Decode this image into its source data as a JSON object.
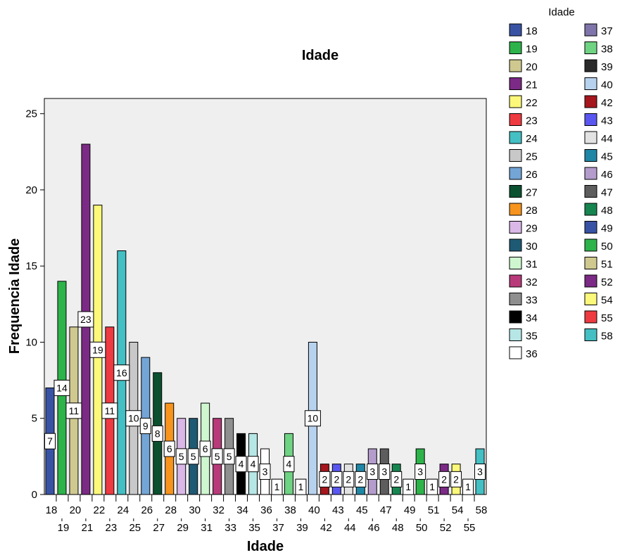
{
  "chart_data": {
    "type": "bar",
    "title": "Idade",
    "xlabel": "Idade",
    "ylabel": "Frequencia Idade",
    "ylim": [
      0,
      26
    ],
    "yticks": [
      0,
      5,
      10,
      15,
      20,
      25
    ],
    "grid": false,
    "legend_title": "Idade",
    "legend_position": "right",
    "categories": [
      "18",
      "19",
      "20",
      "21",
      "22",
      "23",
      "24",
      "25",
      "26",
      "27",
      "28",
      "29",
      "30",
      "31",
      "32",
      "33",
      "34",
      "35",
      "36",
      "37",
      "38",
      "39",
      "40",
      "42",
      "43",
      "44",
      "45",
      "46",
      "47",
      "48",
      "49",
      "50",
      "51",
      "52",
      "54",
      "55",
      "58"
    ],
    "values": [
      7,
      14,
      11,
      23,
      19,
      11,
      16,
      10,
      9,
      8,
      6,
      5,
      5,
      6,
      5,
      5,
      4,
      4,
      3,
      1,
      4,
      1,
      10,
      2,
      2,
      2,
      2,
      3,
      3,
      2,
      1,
      3,
      1,
      2,
      2,
      1,
      3
    ],
    "colors": [
      "#3953a4",
      "#2db34a",
      "#cfc98f",
      "#7b2a85",
      "#fbf87a",
      "#ee3a41",
      "#44bfc3",
      "#c8c8c8",
      "#73a5d6",
      "#0b5130",
      "#f7941d",
      "#d9b7e7",
      "#1f5a74",
      "#cef7cf",
      "#b83a7a",
      "#8f8f8f",
      "#000000",
      "#b6e6e6",
      "#ffffff",
      "#7f75aa",
      "#6ed382",
      "#2a2a2a",
      "#b7d2ef",
      "#a6161d",
      "#5a57f0",
      "#e2e2e2",
      "#1f86a6",
      "#b49ccc",
      "#5d5d5d",
      "#178550",
      "#3953a4",
      "#2db34a",
      "#cfc98f",
      "#7b2a85",
      "#fbf87a",
      "#ee3a41",
      "#44bfc3"
    ]
  }
}
